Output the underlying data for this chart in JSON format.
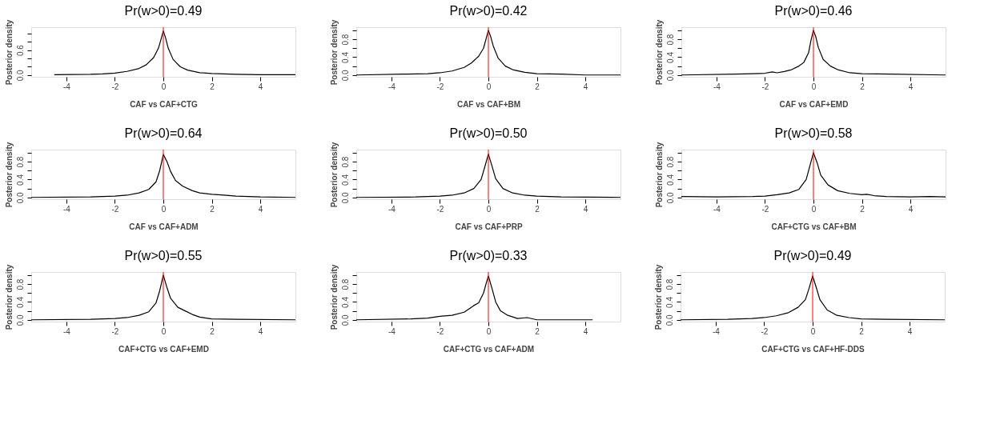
{
  "chart_data": [
    {
      "type": "line",
      "title": "Pr(w>0)=0.49",
      "xlabel": "CAF vs CAF+CTG",
      "ylabel": "Posterior density",
      "xlim": [
        -5.45,
        5.45
      ],
      "xticks": [
        -4,
        -2,
        0,
        2,
        4
      ],
      "ylim": [
        -0.04,
        1.15
      ],
      "yticks": [
        {
          "value": 0,
          "label": "0.0"
        },
        {
          "value": 0.2,
          "label": null
        },
        {
          "value": 0.4,
          "label": null
        },
        {
          "value": 0.6,
          "label": "0.6"
        },
        {
          "value": 0.8,
          "label": null
        },
        {
          "value": 1.0,
          "label": null
        }
      ],
      "grid": false,
      "ref_lines": [
        {
          "axis": "x",
          "value": 0,
          "color": "#ff0000"
        }
      ],
      "series": [
        {
          "color": "#000000",
          "x": [
            -4.5,
            -3,
            -2.5,
            -2,
            -1.5,
            -1,
            -0.7,
            -0.4,
            -0.2,
            -0.1,
            0,
            0.1,
            0.2,
            0.4,
            0.7,
            1,
            1.5,
            2,
            3,
            4,
            5.45
          ],
          "values": [
            0.01,
            0.02,
            0.03,
            0.05,
            0.09,
            0.16,
            0.25,
            0.42,
            0.65,
            0.85,
            1.06,
            0.88,
            0.65,
            0.38,
            0.2,
            0.12,
            0.06,
            0.04,
            0.02,
            0.01,
            0.01
          ]
        }
      ]
    },
    {
      "type": "line",
      "title": "Pr(w>0)=0.42",
      "xlabel": "CAF vs CAF+BM",
      "ylabel": "Posterior density",
      "xlim": [
        -5.45,
        5.45
      ],
      "xticks": [
        -4,
        -2,
        0,
        2,
        4
      ],
      "ylim": [
        -0.04,
        1.07
      ],
      "yticks": [
        {
          "value": 0,
          "label": "0.0"
        },
        {
          "value": 0.2,
          "label": null
        },
        {
          "value": 0.4,
          "label": "0.4"
        },
        {
          "value": 0.6,
          "label": null
        },
        {
          "value": 0.8,
          "label": "0.8"
        },
        {
          "value": 1.0,
          "label": null
        }
      ],
      "grid": false,
      "ref_lines": [
        {
          "axis": "x",
          "value": 0,
          "color": "#ff0000"
        }
      ],
      "series": [
        {
          "color": "#000000",
          "x": [
            -5.45,
            -3.5,
            -2.5,
            -2,
            -1.5,
            -1,
            -0.7,
            -0.4,
            -0.2,
            -0.1,
            0,
            0.1,
            0.2,
            0.4,
            0.7,
            1,
            1.5,
            2,
            3,
            4,
            5.45
          ],
          "values": [
            0.0,
            0.02,
            0.03,
            0.05,
            0.09,
            0.17,
            0.27,
            0.42,
            0.6,
            0.8,
            1.0,
            0.85,
            0.65,
            0.38,
            0.2,
            0.12,
            0.06,
            0.03,
            0.02,
            0.0,
            0.0
          ]
        }
      ]
    },
    {
      "type": "line",
      "title": "Pr(w>0)=0.46",
      "xlabel": "CAF vs CAF+EMD",
      "ylabel": "Posterior density",
      "xlim": [
        -5.45,
        5.45
      ],
      "xticks": [
        -4,
        -2,
        0,
        2,
        4
      ],
      "ylim": [
        -0.04,
        1.07
      ],
      "yticks": [
        {
          "value": 0,
          "label": "0.0"
        },
        {
          "value": 0.2,
          "label": null
        },
        {
          "value": 0.4,
          "label": "0.4"
        },
        {
          "value": 0.6,
          "label": null
        },
        {
          "value": 0.8,
          "label": "0.8"
        },
        {
          "value": 1.0,
          "label": null
        }
      ],
      "grid": false,
      "ref_lines": [
        {
          "axis": "x",
          "value": 0,
          "color": "#ff0000"
        }
      ],
      "series": [
        {
          "color": "#000000",
          "x": [
            -5.45,
            -3.2,
            -2.5,
            -2,
            -1.7,
            -1.5,
            -1.2,
            -0.9,
            -0.6,
            -0.4,
            -0.2,
            -0.1,
            0,
            0.1,
            0.2,
            0.4,
            0.7,
            1,
            1.5,
            2,
            3.2,
            5.45
          ],
          "values": [
            0.0,
            0.02,
            0.03,
            0.04,
            0.07,
            0.05,
            0.08,
            0.12,
            0.2,
            0.28,
            0.5,
            0.78,
            1.0,
            0.85,
            0.62,
            0.35,
            0.2,
            0.12,
            0.05,
            0.03,
            0.02,
            0.0
          ]
        }
      ]
    },
    {
      "type": "line",
      "title": "Pr(w>0)=0.64",
      "xlabel": "CAF vs CAF+ADM",
      "ylabel": "Posterior density",
      "xlim": [
        -5.45,
        5.45
      ],
      "xticks": [
        -4,
        -2,
        0,
        2,
        4
      ],
      "ylim": [
        -0.04,
        1.07
      ],
      "yticks": [
        {
          "value": 0,
          "label": "0.0"
        },
        {
          "value": 0.2,
          "label": null
        },
        {
          "value": 0.4,
          "label": "0.4"
        },
        {
          "value": 0.6,
          "label": null
        },
        {
          "value": 0.8,
          "label": "0.8"
        },
        {
          "value": 1.0,
          "label": null
        }
      ],
      "grid": false,
      "ref_lines": [
        {
          "axis": "x",
          "value": 0,
          "color": "#ff0000"
        }
      ],
      "series": [
        {
          "color": "#000000",
          "x": [
            -5.45,
            -3,
            -2,
            -1.5,
            -1,
            -0.6,
            -0.3,
            -0.15,
            0,
            0.15,
            0.3,
            0.5,
            0.8,
            1.2,
            1.5,
            2,
            2.5,
            3,
            4,
            5.45
          ],
          "values": [
            0.0,
            0.01,
            0.03,
            0.05,
            0.1,
            0.18,
            0.35,
            0.6,
            0.96,
            0.8,
            0.58,
            0.38,
            0.25,
            0.15,
            0.1,
            0.07,
            0.05,
            0.03,
            0.01,
            0.0
          ]
        }
      ]
    },
    {
      "type": "line",
      "title": "Pr(w>0)=0.50",
      "xlabel": "CAF vs CAF+PRP",
      "ylabel": "Posterior density",
      "xlim": [
        -5.45,
        5.45
      ],
      "xticks": [
        -4,
        -2,
        0,
        2,
        4
      ],
      "ylim": [
        -0.04,
        1.07
      ],
      "yticks": [
        {
          "value": 0,
          "label": "0.0"
        },
        {
          "value": 0.2,
          "label": null
        },
        {
          "value": 0.4,
          "label": "0.4"
        },
        {
          "value": 0.6,
          "label": null
        },
        {
          "value": 0.8,
          "label": "0.8"
        },
        {
          "value": 1.0,
          "label": null
        }
      ],
      "grid": false,
      "ref_lines": [
        {
          "axis": "x",
          "value": 0,
          "color": "#ff0000"
        }
      ],
      "series": [
        {
          "color": "#000000",
          "x": [
            -5.45,
            -3,
            -2,
            -1.5,
            -1,
            -0.6,
            -0.3,
            -0.15,
            0,
            0.15,
            0.3,
            0.6,
            1,
            1.5,
            2,
            3,
            5.45
          ],
          "values": [
            0.0,
            0.01,
            0.03,
            0.05,
            0.1,
            0.2,
            0.4,
            0.68,
            0.97,
            0.7,
            0.42,
            0.2,
            0.1,
            0.05,
            0.03,
            0.01,
            0.0
          ]
        }
      ]
    },
    {
      "type": "line",
      "title": "Pr(w>0)=0.58",
      "xlabel": "CAF+CTG vs CAF+BM",
      "ylabel": "Posterior density",
      "xlim": [
        -5.45,
        5.45
      ],
      "xticks": [
        -4,
        -2,
        0,
        2,
        4
      ],
      "ylim": [
        -0.04,
        1.07
      ],
      "yticks": [
        {
          "value": 0,
          "label": "0.0"
        },
        {
          "value": 0.2,
          "label": null
        },
        {
          "value": 0.4,
          "label": "0.4"
        },
        {
          "value": 0.6,
          "label": null
        },
        {
          "value": 0.8,
          "label": "0.8"
        },
        {
          "value": 1.0,
          "label": null
        }
      ],
      "grid": false,
      "ref_lines": [
        {
          "axis": "x",
          "value": 0,
          "color": "#ff0000"
        }
      ],
      "series": [
        {
          "color": "#000000",
          "x": [
            -5.45,
            -4,
            -2.5,
            -2,
            -1.5,
            -1,
            -0.6,
            -0.3,
            -0.15,
            0,
            0.15,
            0.3,
            0.6,
            1,
            1.5,
            2,
            2.2,
            2.5,
            3,
            4,
            4.8,
            5.45
          ],
          "values": [
            0.02,
            0.01,
            0.02,
            0.03,
            0.06,
            0.1,
            0.18,
            0.4,
            0.7,
            1.0,
            0.78,
            0.5,
            0.28,
            0.15,
            0.09,
            0.06,
            0.07,
            0.04,
            0.02,
            0.01,
            0.02,
            0.01
          ]
        }
      ]
    },
    {
      "type": "line",
      "title": "Pr(w>0)=0.55",
      "xlabel": "CAF+CTG vs CAF+EMD",
      "ylabel": "Posterior density",
      "xlim": [
        -5.45,
        5.45
      ],
      "xticks": [
        -4,
        -2,
        0,
        2,
        4
      ],
      "ylim": [
        -0.04,
        1.07
      ],
      "yticks": [
        {
          "value": 0,
          "label": "0.0"
        },
        {
          "value": 0.2,
          "label": null
        },
        {
          "value": 0.4,
          "label": "0.4"
        },
        {
          "value": 0.6,
          "label": null
        },
        {
          "value": 0.8,
          "label": "0.8"
        },
        {
          "value": 1.0,
          "label": null
        }
      ],
      "grid": false,
      "ref_lines": [
        {
          "axis": "x",
          "value": 0,
          "color": "#ff0000"
        }
      ],
      "series": [
        {
          "color": "#000000",
          "x": [
            -5.45,
            -3,
            -2,
            -1.5,
            -1,
            -0.6,
            -0.3,
            -0.15,
            0,
            0.15,
            0.3,
            0.6,
            0.9,
            1.2,
            1.5,
            2,
            3,
            5.45
          ],
          "values": [
            0.0,
            0.01,
            0.03,
            0.05,
            0.1,
            0.18,
            0.38,
            0.65,
            1.0,
            0.72,
            0.48,
            0.28,
            0.2,
            0.12,
            0.06,
            0.02,
            0.01,
            0.0
          ]
        }
      ]
    },
    {
      "type": "line",
      "title": "Pr(w>0)=0.33",
      "xlabel": "CAF+CTG vs CAF+ADM",
      "ylabel": "Posterior density",
      "xlim": [
        -5.45,
        5.45
      ],
      "xticks": [
        -4,
        -2,
        0,
        2,
        4
      ],
      "ylim": [
        -0.04,
        1.07
      ],
      "yticks": [
        {
          "value": 0,
          "label": "0.0"
        },
        {
          "value": 0.2,
          "label": null
        },
        {
          "value": 0.4,
          "label": "0.4"
        },
        {
          "value": 0.6,
          "label": null
        },
        {
          "value": 0.8,
          "label": "0.8"
        },
        {
          "value": 1.0,
          "label": null
        }
      ],
      "grid": false,
      "ref_lines": [
        {
          "axis": "x",
          "value": 0,
          "color": "#ff0000"
        }
      ],
      "series": [
        {
          "color": "#000000",
          "x": [
            -5.45,
            -3.2,
            -2.5,
            -2,
            -1.5,
            -1,
            -0.6,
            -0.4,
            -0.2,
            -0.1,
            0,
            0.15,
            0.3,
            0.5,
            0.8,
            1.2,
            1.6,
            2,
            4.3
          ],
          "values": [
            0.0,
            0.02,
            0.04,
            0.08,
            0.1,
            0.17,
            0.32,
            0.38,
            0.6,
            0.8,
            0.98,
            0.7,
            0.4,
            0.2,
            0.1,
            0.03,
            0.05,
            0.0,
            0.0
          ]
        }
      ]
    },
    {
      "type": "line",
      "title": "Pr(w>0)=0.49",
      "xlabel": "CAF+CTG vs CAF+HF-DDS",
      "ylabel": "Posterior density",
      "xlim": [
        -5.45,
        5.45
      ],
      "xticks": [
        -4,
        -2,
        0,
        2,
        4
      ],
      "ylim": [
        -0.04,
        1.07
      ],
      "yticks": [
        {
          "value": 0,
          "label": "0.0"
        },
        {
          "value": 0.2,
          "label": null
        },
        {
          "value": 0.4,
          "label": "0.4"
        },
        {
          "value": 0.6,
          "label": null
        },
        {
          "value": 0.8,
          "label": "0.8"
        },
        {
          "value": 1.0,
          "label": null
        }
      ],
      "grid": false,
      "ref_lines": [
        {
          "axis": "x",
          "value": 0,
          "color": "#ff0000"
        }
      ],
      "series": [
        {
          "color": "#000000",
          "x": [
            -5.45,
            -3.5,
            -2.5,
            -2,
            -1.5,
            -1,
            -0.6,
            -0.3,
            -0.15,
            0,
            0.15,
            0.3,
            0.6,
            1,
            1.5,
            2,
            3,
            5.45
          ],
          "values": [
            0.0,
            0.01,
            0.03,
            0.05,
            0.09,
            0.16,
            0.28,
            0.45,
            0.7,
            0.98,
            0.72,
            0.45,
            0.22,
            0.1,
            0.05,
            0.02,
            0.01,
            0.0
          ]
        }
      ]
    }
  ]
}
